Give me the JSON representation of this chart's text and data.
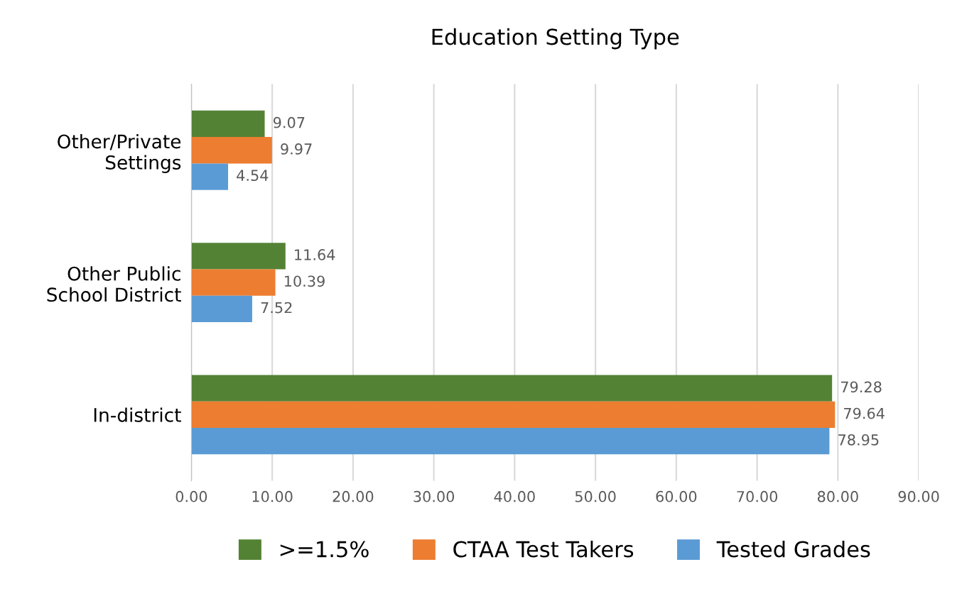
{
  "chart_data": {
    "type": "bar",
    "orientation": "horizontal",
    "title": "Education Setting Type",
    "categories": [
      "Other/Private\nSettings",
      "Other Public\nSchool District",
      "In-district"
    ],
    "series": [
      {
        "name": ">=1.5%",
        "color": "#548235",
        "values": [
          9.07,
          11.64,
          79.28
        ]
      },
      {
        "name": "CTAA Test Takers",
        "color": "#ed7d31",
        "values": [
          9.97,
          10.39,
          79.64
        ]
      },
      {
        "name": "Tested Grades",
        "color": "#5b9bd5",
        "values": [
          4.54,
          7.52,
          78.95
        ]
      }
    ],
    "xlim": [
      0,
      90
    ],
    "xticks": [
      {
        "value": 0,
        "label": "0.00"
      },
      {
        "value": 10,
        "label": "10.00"
      },
      {
        "value": 20,
        "label": "20.00"
      },
      {
        "value": 30,
        "label": "30.00"
      },
      {
        "value": 40,
        "label": "40.00"
      },
      {
        "value": 50,
        "label": "50.00"
      },
      {
        "value": 60,
        "label": "60.00"
      },
      {
        "value": 70,
        "label": "70.00"
      },
      {
        "value": 80,
        "label": "80.00"
      },
      {
        "value": 90,
        "label": "90.00"
      }
    ],
    "grid": "x",
    "legend": "bottom",
    "data_labels": true
  }
}
